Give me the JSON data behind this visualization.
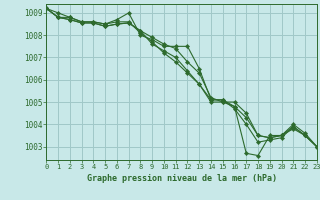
{
  "background_color": "#c8e8e8",
  "grid_color": "#a0c8c8",
  "line_color": "#2d6a2d",
  "title": "Graphe pression niveau de la mer (hPa)",
  "xlim": [
    0,
    23
  ],
  "ylim": [
    1002.4,
    1009.4
  ],
  "yticks": [
    1003,
    1004,
    1005,
    1006,
    1007,
    1008,
    1009
  ],
  "xticks": [
    0,
    1,
    2,
    3,
    4,
    5,
    6,
    7,
    8,
    9,
    10,
    11,
    12,
    13,
    14,
    15,
    16,
    17,
    18,
    19,
    20,
    21,
    22,
    23
  ],
  "series": [
    [
      1009.2,
      1008.8,
      1008.8,
      1008.6,
      1008.6,
      1008.5,
      1008.7,
      1009.0,
      1008.0,
      1007.8,
      1007.5,
      1007.5,
      1007.5,
      1006.5,
      1005.1,
      1005.1,
      1004.8,
      1002.7,
      1002.6,
      1003.5,
      1003.5,
      1004.0,
      1003.6,
      1003.0
    ],
    [
      1009.2,
      1008.8,
      1008.7,
      1008.55,
      1008.55,
      1008.4,
      1008.5,
      1008.55,
      1008.2,
      1007.9,
      1007.6,
      1007.4,
      1006.8,
      1006.3,
      1005.2,
      1005.0,
      1005.0,
      1004.5,
      1003.5,
      1003.4,
      1003.5,
      1003.8,
      1003.5,
      1003.0
    ],
    [
      1009.2,
      1008.8,
      1008.7,
      1008.55,
      1008.55,
      1008.4,
      1008.5,
      1008.55,
      1008.2,
      1007.6,
      1007.3,
      1007.0,
      1006.4,
      1005.8,
      1005.0,
      1005.0,
      1004.8,
      1004.3,
      1003.5,
      1003.4,
      1003.5,
      1003.9,
      1003.5,
      1003.0
    ],
    [
      1009.2,
      1009.0,
      1008.8,
      1008.6,
      1008.6,
      1008.5,
      1008.6,
      1008.6,
      1008.1,
      1007.7,
      1007.2,
      1006.8,
      1006.3,
      1005.8,
      1005.1,
      1005.1,
      1004.7,
      1004.0,
      1003.2,
      1003.3,
      1003.4,
      1003.9,
      1003.5,
      1003.0
    ]
  ]
}
